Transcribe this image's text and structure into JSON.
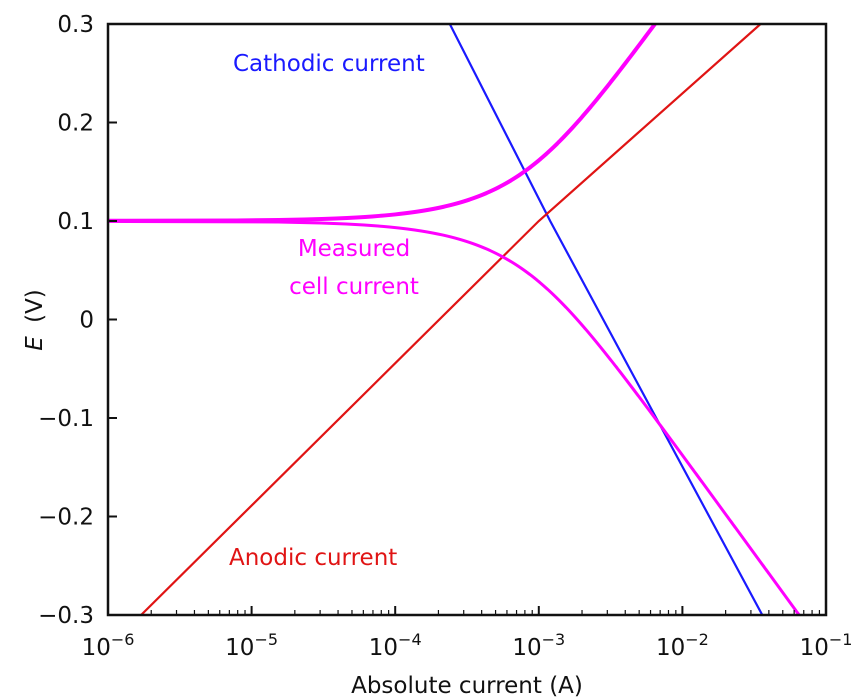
{
  "chart_data": {
    "type": "line",
    "title": "",
    "xlabel": "Absolute current (A)",
    "ylabel_symbol": "E",
    "ylabel_unit": "(V)",
    "xscale": "log",
    "xlim": [
      1e-06,
      0.1
    ],
    "ylim": [
      -0.3,
      0.3
    ],
    "grid": false,
    "legend": "none",
    "x_ticks": [
      {
        "base": "10",
        "exp": "−6",
        "value": 1e-06
      },
      {
        "base": "10",
        "exp": "−5",
        "value": 1e-05
      },
      {
        "base": "10",
        "exp": "−4",
        "value": 0.0001
      },
      {
        "base": "10",
        "exp": "−3",
        "value": 0.001
      },
      {
        "base": "10",
        "exp": "−2",
        "value": 0.01
      },
      {
        "base": "10",
        "exp": "−1",
        "value": 0.1
      }
    ],
    "y_ticks": [
      {
        "label": "0.3",
        "value": 0.3
      },
      {
        "label": "0.2",
        "value": 0.2
      },
      {
        "label": "0.1",
        "value": 0.1
      },
      {
        "label": "0",
        "value": 0
      },
      {
        "label": "−0.1",
        "value": -0.1
      },
      {
        "label": "−0.2",
        "value": -0.2
      },
      {
        "label": "−0.3",
        "value": -0.3
      }
    ],
    "series": [
      {
        "id": "cathodic",
        "color": "#1a1aff",
        "points": [
          [
            0.00024,
            0.3
          ],
          [
            0.0012,
            0.1
          ],
          [
            0.036,
            -0.3
          ]
        ]
      },
      {
        "id": "anodic",
        "color": "#e01414",
        "points": [
          [
            1.7e-06,
            -0.3
          ],
          [
            0.001,
            0.1
          ],
          [
            0.035,
            0.3
          ]
        ]
      },
      {
        "id": "measured",
        "color": "#ff00ff",
        "model": {
          "i0": 0.00065,
          "E0": 0.1,
          "b": 0.2
        }
      }
    ],
    "annotations": {
      "cathodic": {
        "text": "Cathodic current",
        "color": "#1a1aff"
      },
      "anodic": {
        "text": "Anodic current",
        "color": "#e01414"
      },
      "measured_line1": {
        "text": "Measured",
        "color": "#ff00ff"
      },
      "measured_line2": {
        "text": "cell current",
        "color": "#ff00ff"
      }
    }
  }
}
